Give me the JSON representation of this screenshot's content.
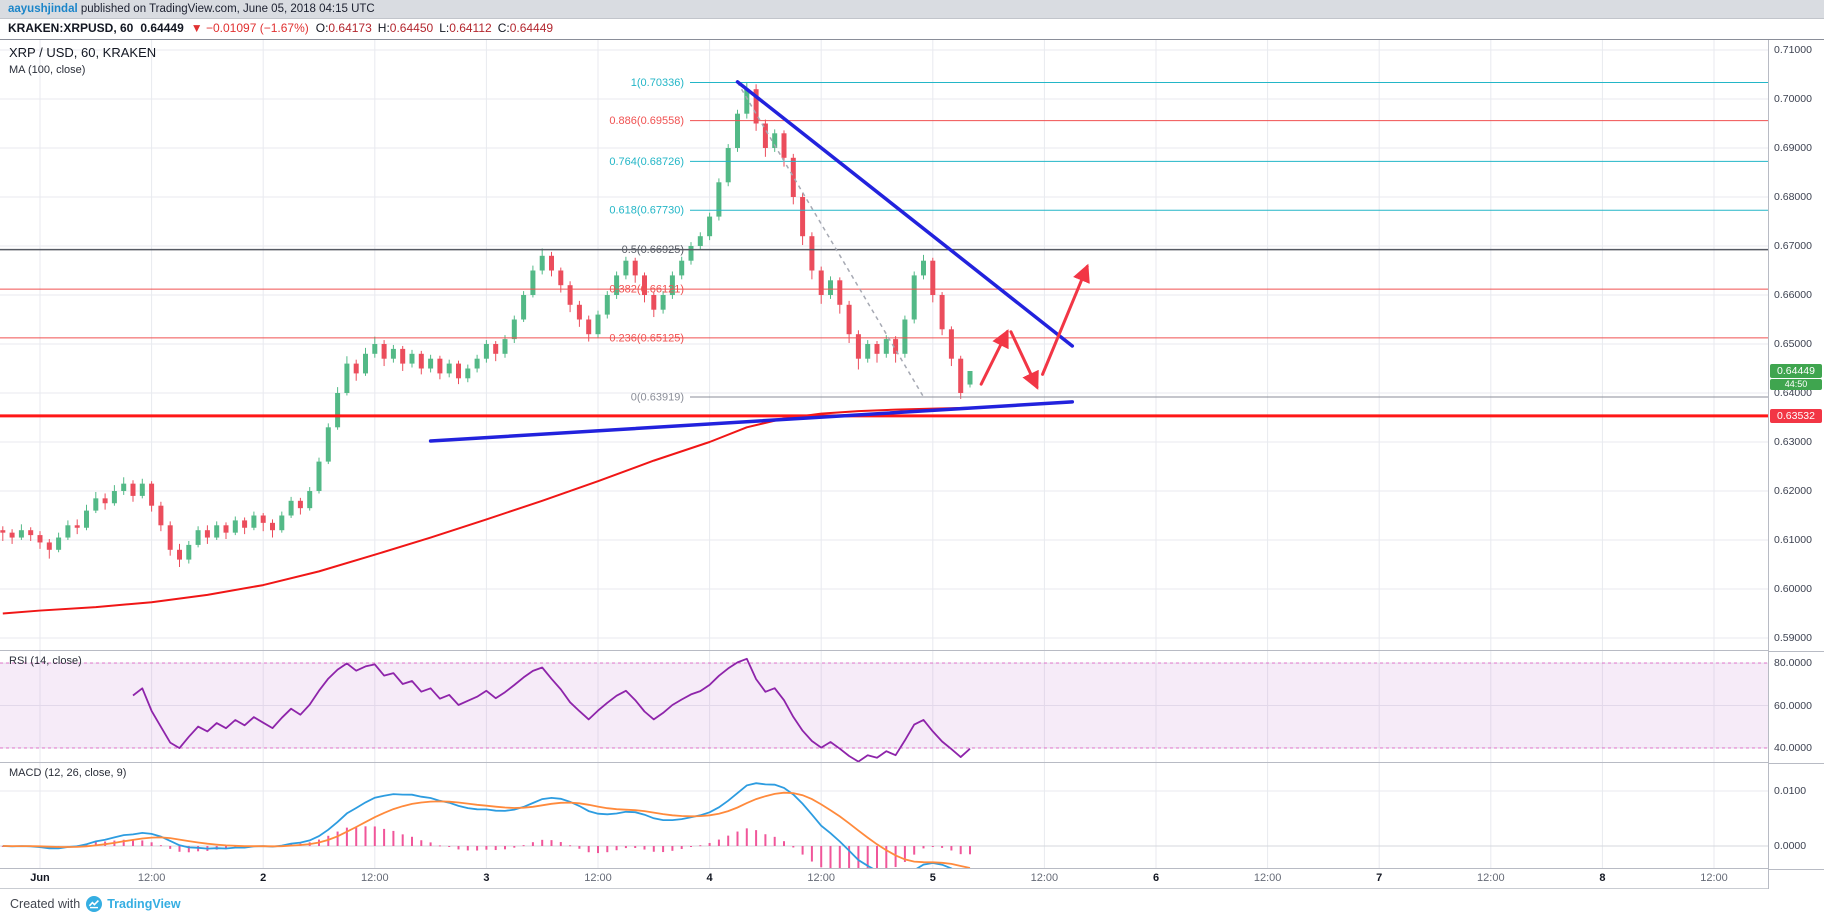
{
  "attribution": {
    "user": "aayushjindal",
    "rest": " published on TradingView.com, June 05, 2018 04:15 UTC"
  },
  "ticker": {
    "symbol": "KRAKEN:XRPUSD, 60",
    "last": "0.64449",
    "direction_icon": "▼",
    "change": "−0.01097 (−1.67%)",
    "ohlc": {
      "o_label": "O:",
      "o": "0.64173",
      "h_label": "H:",
      "h": "0.64450",
      "l_label": "L:",
      "l": "0.64112",
      "c_label": "C:",
      "c": "0.64449"
    }
  },
  "main_legend": {
    "title": "XRP / USD, 60, KRAKEN",
    "ma": "MA (100, close)"
  },
  "rsi_legend": "RSI (14, close)",
  "macd_legend": "MACD (12, 26, close, 9)",
  "footer": {
    "prefix": "Created with",
    "brand": "TradingView"
  },
  "badges": {
    "last_price": "0.64449",
    "countdown": "44:50",
    "support": "0.63532"
  },
  "price_axis": {
    "main": [
      "0.71000",
      "0.70000",
      "0.69000",
      "0.68000",
      "0.67000",
      "0.66000",
      "0.65000",
      "0.64000",
      "0.63000",
      "0.62000",
      "0.61000",
      "0.60000",
      "0.59000"
    ],
    "rsi": [
      "80.0000",
      "60.0000",
      "40.0000"
    ],
    "macd": [
      "0.0100",
      "0.0000"
    ]
  },
  "time_axis": [
    {
      "t": 0,
      "label": "Jun",
      "major": true
    },
    {
      "t": 12,
      "label": "12:00",
      "major": false
    },
    {
      "t": 24,
      "label": "2",
      "major": true
    },
    {
      "t": 36,
      "label": "12:00",
      "major": false
    },
    {
      "t": 48,
      "label": "3",
      "major": true
    },
    {
      "t": 60,
      "label": "12:00",
      "major": false
    },
    {
      "t": 72,
      "label": "4",
      "major": true
    },
    {
      "t": 84,
      "label": "12:00",
      "major": false
    },
    {
      "t": 96,
      "label": "5",
      "major": true
    },
    {
      "t": 108,
      "label": "12:00",
      "major": false
    },
    {
      "t": 120,
      "label": "6",
      "major": true
    },
    {
      "t": 132,
      "label": "12:00",
      "major": false
    },
    {
      "t": 144,
      "label": "7",
      "major": true
    },
    {
      "t": 156,
      "label": "12:00",
      "major": false
    },
    {
      "t": 168,
      "label": "8",
      "major": true
    },
    {
      "t": 180,
      "label": "12:00",
      "major": false
    }
  ],
  "colors": {
    "up": "#53b987",
    "down": "#eb4d5c",
    "ma": "#f01616",
    "trend": "#2222dd",
    "support": "#ff1717",
    "arrow": "#f23645",
    "fib_teal": "#23b6c7",
    "fib_red": "#f05151",
    "fib_dark": "#565a63",
    "fib_gray": "#8b8e98",
    "grid": "#e8eaef",
    "dashed": "#a6a9b3",
    "rsi": "#8e24aa",
    "rsi_band": "rgba(186,104,200,0.13)",
    "rsi_edge": "#d81bad",
    "macd": "#2d9ce0",
    "signal": "#ff8a3c",
    "hist": "#f0569a",
    "badge_up": "#3fa54f",
    "badge_down": "#f23645",
    "link": "#1b85c9",
    "brand": "#35aee2",
    "axis_text": "#3c4150"
  },
  "chart_data": [
    {
      "type": "candlestick",
      "title": "XRP / USD, 60, KRAKEN",
      "x_unit": "hours since Jun 1 00:00 (2018), hourly candles, visible range Jun 1 – Jun 8, data through Jun 5 04:00",
      "t_start": -4,
      "ylim": [
        0.59,
        0.71
      ],
      "current_price": 0.64449,
      "support_line": 0.63532,
      "candles": [
        [
          0.612,
          0.6128,
          0.6098,
          0.6115
        ],
        [
          0.6115,
          0.6122,
          0.6092,
          0.6105
        ],
        [
          0.6105,
          0.6132,
          0.61,
          0.612
        ],
        [
          0.612,
          0.6126,
          0.6098,
          0.611
        ],
        [
          0.611,
          0.6118,
          0.6082,
          0.6095
        ],
        [
          0.6095,
          0.6102,
          0.6062,
          0.608
        ],
        [
          0.608,
          0.6115,
          0.6075,
          0.6105
        ],
        [
          0.6105,
          0.614,
          0.61,
          0.613
        ],
        [
          0.613,
          0.6142,
          0.6112,
          0.6125
        ],
        [
          0.6125,
          0.6172,
          0.612,
          0.616
        ],
        [
          0.616,
          0.6198,
          0.6155,
          0.6185
        ],
        [
          0.6185,
          0.6195,
          0.6162,
          0.6175
        ],
        [
          0.6175,
          0.6212,
          0.617,
          0.62
        ],
        [
          0.62,
          0.6228,
          0.6192,
          0.6215
        ],
        [
          0.6215,
          0.6222,
          0.6178,
          0.619
        ],
        [
          0.619,
          0.6225,
          0.6185,
          0.6215
        ],
        [
          0.6215,
          0.622,
          0.6158,
          0.617
        ],
        [
          0.617,
          0.6178,
          0.6118,
          0.613
        ],
        [
          0.613,
          0.6138,
          0.6068,
          0.608
        ],
        [
          0.608,
          0.6092,
          0.6045,
          0.606
        ],
        [
          0.606,
          0.6098,
          0.6052,
          0.609
        ],
        [
          0.609,
          0.6128,
          0.6085,
          0.612
        ],
        [
          0.612,
          0.613,
          0.6092,
          0.6105
        ],
        [
          0.6105,
          0.6138,
          0.61,
          0.613
        ],
        [
          0.613,
          0.6136,
          0.6102,
          0.6115
        ],
        [
          0.6115,
          0.6148,
          0.611,
          0.614
        ],
        [
          0.614,
          0.6146,
          0.6112,
          0.6125
        ],
        [
          0.6125,
          0.6158,
          0.612,
          0.615
        ],
        [
          0.615,
          0.6155,
          0.6118,
          0.6135
        ],
        [
          0.6135,
          0.6142,
          0.6105,
          0.612
        ],
        [
          0.612,
          0.6158,
          0.6115,
          0.615
        ],
        [
          0.615,
          0.6188,
          0.6145,
          0.618
        ],
        [
          0.618,
          0.6186,
          0.6152,
          0.6165
        ],
        [
          0.6165,
          0.6208,
          0.616,
          0.62
        ],
        [
          0.62,
          0.6268,
          0.6195,
          0.626
        ],
        [
          0.626,
          0.6338,
          0.6255,
          0.633
        ],
        [
          0.633,
          0.6412,
          0.6325,
          0.64
        ],
        [
          0.64,
          0.6475,
          0.6395,
          0.646
        ],
        [
          0.646,
          0.6468,
          0.6425,
          0.644
        ],
        [
          0.644,
          0.6492,
          0.6435,
          0.648
        ],
        [
          0.648,
          0.6515,
          0.6472,
          0.65
        ],
        [
          0.65,
          0.6508,
          0.6455,
          0.647
        ],
        [
          0.647,
          0.6498,
          0.6462,
          0.649
        ],
        [
          0.649,
          0.6496,
          0.6445,
          0.646
        ],
        [
          0.646,
          0.6488,
          0.6452,
          0.648
        ],
        [
          0.648,
          0.6486,
          0.6438,
          0.645
        ],
        [
          0.645,
          0.6478,
          0.6442,
          0.647
        ],
        [
          0.647,
          0.6476,
          0.6428,
          0.644
        ],
        [
          0.644,
          0.6468,
          0.6432,
          0.646
        ],
        [
          0.646,
          0.6466,
          0.6418,
          0.643
        ],
        [
          0.643,
          0.6458,
          0.6422,
          0.645
        ],
        [
          0.645,
          0.6478,
          0.6442,
          0.647
        ],
        [
          0.647,
          0.6508,
          0.6462,
          0.65
        ],
        [
          0.65,
          0.6506,
          0.6465,
          0.648
        ],
        [
          0.648,
          0.6518,
          0.6472,
          0.651
        ],
        [
          0.651,
          0.6558,
          0.6502,
          0.655
        ],
        [
          0.655,
          0.6608,
          0.6545,
          0.66
        ],
        [
          0.66,
          0.666,
          0.6595,
          0.665
        ],
        [
          0.665,
          0.6695,
          0.6642,
          0.668
        ],
        [
          0.668,
          0.6688,
          0.6638,
          0.665
        ],
        [
          0.665,
          0.6656,
          0.6605,
          0.662
        ],
        [
          0.662,
          0.6628,
          0.6565,
          0.658
        ],
        [
          0.658,
          0.6588,
          0.6535,
          0.655
        ],
        [
          0.655,
          0.6558,
          0.6505,
          0.652
        ],
        [
          0.652,
          0.6568,
          0.6512,
          0.656
        ],
        [
          0.656,
          0.6608,
          0.6552,
          0.66
        ],
        [
          0.66,
          0.6648,
          0.6592,
          0.664
        ],
        [
          0.664,
          0.6678,
          0.6632,
          0.667
        ],
        [
          0.667,
          0.6676,
          0.6625,
          0.664
        ],
        [
          0.664,
          0.6646,
          0.6585,
          0.66
        ],
        [
          0.66,
          0.6606,
          0.6555,
          0.657
        ],
        [
          0.657,
          0.6608,
          0.6562,
          0.66
        ],
        [
          0.66,
          0.6648,
          0.6592,
          0.664
        ],
        [
          0.664,
          0.6678,
          0.6632,
          0.667
        ],
        [
          0.667,
          0.6708,
          0.6662,
          0.67
        ],
        [
          0.67,
          0.6728,
          0.6692,
          0.672
        ],
        [
          0.672,
          0.6768,
          0.6712,
          0.676
        ],
        [
          0.676,
          0.6838,
          0.6752,
          0.683
        ],
        [
          0.683,
          0.6908,
          0.6822,
          0.69
        ],
        [
          0.69,
          0.6978,
          0.6892,
          0.697
        ],
        [
          0.697,
          0.70336,
          0.696,
          0.702
        ],
        [
          0.702,
          0.703,
          0.6935,
          0.695
        ],
        [
          0.695,
          0.6958,
          0.6882,
          0.69
        ],
        [
          0.69,
          0.6938,
          0.6892,
          0.693
        ],
        [
          0.693,
          0.6936,
          0.6862,
          0.688
        ],
        [
          0.688,
          0.6888,
          0.6785,
          0.68
        ],
        [
          0.68,
          0.6808,
          0.6702,
          0.672
        ],
        [
          0.672,
          0.6728,
          0.6632,
          0.665
        ],
        [
          0.665,
          0.6658,
          0.6582,
          0.66
        ],
        [
          0.66,
          0.6638,
          0.6592,
          0.663
        ],
        [
          0.663,
          0.6636,
          0.6562,
          0.658
        ],
        [
          0.658,
          0.6588,
          0.6502,
          0.652
        ],
        [
          0.652,
          0.6528,
          0.6448,
          0.647
        ],
        [
          0.647,
          0.6508,
          0.6462,
          0.65
        ],
        [
          0.65,
          0.6506,
          0.6462,
          0.648
        ],
        [
          0.648,
          0.6518,
          0.6472,
          0.651
        ],
        [
          0.651,
          0.6516,
          0.6462,
          0.648
        ],
        [
          0.648,
          0.6558,
          0.6472,
          0.655
        ],
        [
          0.655,
          0.6648,
          0.6542,
          0.664
        ],
        [
          0.664,
          0.6682,
          0.6632,
          0.667
        ],
        [
          0.667,
          0.6676,
          0.6585,
          0.66
        ],
        [
          0.66,
          0.6606,
          0.6518,
          0.653
        ],
        [
          0.653,
          0.6536,
          0.6455,
          0.647
        ],
        [
          0.647,
          0.6476,
          0.6388,
          0.64
        ],
        [
          0.64173,
          0.6445,
          0.64112,
          0.64449
        ]
      ],
      "ma_100": [
        [
          -4,
          0.595
        ],
        [
          0,
          0.5956
        ],
        [
          6,
          0.5963
        ],
        [
          12,
          0.5973
        ],
        [
          18,
          0.5988
        ],
        [
          24,
          0.6008
        ],
        [
          30,
          0.6036
        ],
        [
          36,
          0.607
        ],
        [
          42,
          0.6105
        ],
        [
          48,
          0.6142
        ],
        [
          54,
          0.618
        ],
        [
          60,
          0.622
        ],
        [
          66,
          0.6262
        ],
        [
          72,
          0.63
        ],
        [
          76,
          0.633
        ],
        [
          80,
          0.6348
        ],
        [
          84,
          0.6358
        ],
        [
          88,
          0.6363
        ],
        [
          92,
          0.6366
        ],
        [
          96,
          0.6368
        ],
        [
          100,
          0.637
        ]
      ],
      "fib_levels": [
        {
          "label": "1(0.70336)",
          "price": 0.70336,
          "color": "teal",
          "full_width": false
        },
        {
          "label": "0.886(0.69558)",
          "price": 0.69558,
          "color": "red",
          "full_width": false
        },
        {
          "label": "0.764(0.68726)",
          "price": 0.68726,
          "color": "teal",
          "full_width": false
        },
        {
          "label": "0.618(0.67730)",
          "price": 0.6773,
          "color": "teal",
          "full_width": false
        },
        {
          "label": "0.5(0.66925)",
          "price": 0.66925,
          "color": "dark",
          "full_width": true
        },
        {
          "label": "0.382(0.66121)",
          "price": 0.66121,
          "color": "red",
          "full_width": true
        },
        {
          "label": "0.236(0.65125)",
          "price": 0.65125,
          "color": "red",
          "full_width": true
        },
        {
          "label": "0(0.63919)",
          "price": 0.63919,
          "color": "gray",
          "full_width": false
        }
      ],
      "trend_lines": [
        {
          "from": [
            75,
            0.7035
          ],
          "to": [
            111,
            0.6496
          ]
        },
        {
          "from": [
            42,
            0.6302
          ],
          "to": [
            111,
            0.6382
          ]
        }
      ],
      "dashed_line": {
        "from": [
          75,
          0.7034
        ],
        "to": [
          95,
          0.6392
        ]
      },
      "projection_arrows": [
        {
          "from": [
            101.2,
            0.6418
          ],
          "to": [
            104.0,
            0.6525
          ]
        },
        {
          "from": [
            104.4,
            0.6525
          ],
          "to": [
            107.2,
            0.6412
          ]
        },
        {
          "from": [
            107.8,
            0.6438
          ],
          "to": [
            112.6,
            0.6658
          ]
        }
      ]
    },
    {
      "type": "line",
      "name": "RSI (14, close)",
      "period": 14,
      "source": "close",
      "band": [
        40,
        80
      ],
      "axis_ticks": [
        80,
        60,
        40
      ],
      "note": "RSI series derived from candle closes of chart_data[0]"
    },
    {
      "type": "line+histogram",
      "name": "MACD (12, 26, close, 9)",
      "fast": 12,
      "slow": 26,
      "signal": 9,
      "axis_ticks": [
        0.01,
        0
      ],
      "note": "MACD/signal/histogram derived from candle closes of chart_data[0]"
    }
  ]
}
